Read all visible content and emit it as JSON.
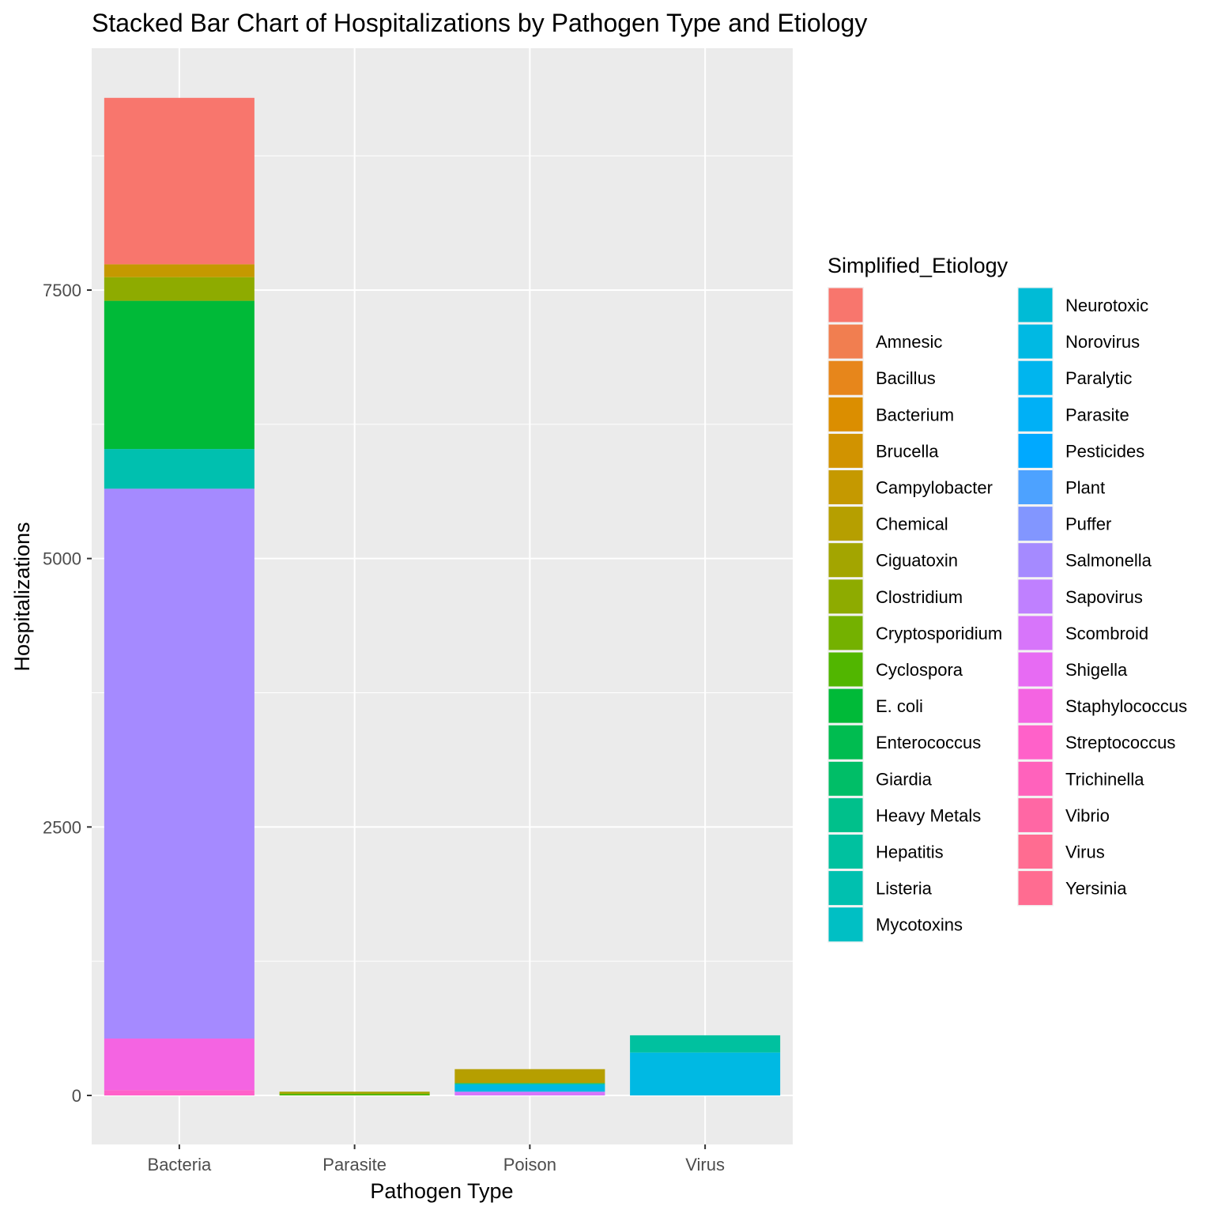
{
  "chart_data": {
    "type": "bar",
    "stacked": true,
    "title": "Stacked Bar Chart of Hospitalizations by Pathogen Type and Etiology",
    "xlabel": "Pathogen Type",
    "ylabel": "Hospitalizations",
    "categories": [
      "Bacteria",
      "Parasite",
      "Poison",
      "Virus"
    ],
    "ylim": [
      -450,
      9720
    ],
    "y_ticks": [
      0,
      2500,
      5000,
      7500
    ],
    "y_tick_labels": [
      "0",
      "2500",
      "5000",
      "7500"
    ],
    "grid": true,
    "legend": {
      "title": "Simplified_Etiology",
      "placement": "right",
      "columns": 2,
      "entries": [
        "",
        "Amnesic",
        "Bacillus",
        "Bacterium",
        "Brucella",
        "Campylobacter",
        "Chemical",
        "Ciguatoxin",
        "Clostridium",
        "Cryptosporidium",
        "Cyclospora",
        "E. coli",
        "Enterococcus",
        "Giardia",
        "Heavy Metals",
        "Hepatitis",
        "Listeria",
        "Mycotoxins",
        "Neurotoxic",
        "Norovirus",
        "Paralytic",
        "Parasite",
        "Pesticides",
        "Plant",
        "Puffer",
        "Salmonella",
        "Sapovirus",
        "Scombroid",
        "Shigella",
        "Staphylococcus",
        "Streptococcus",
        "Trichinella",
        "Vibrio",
        "Virus",
        "Yersinia"
      ]
    },
    "colors": {
      "": "#F8766D",
      "Amnesic": "#F17E50",
      "Bacillus": "#E7861B",
      "Bacterium": "#DB8E00",
      "Brucella": "#D19300",
      "Campylobacter": "#C59900",
      "Chemical": "#B69F00",
      "Ciguatoxin": "#A3A500",
      "Clostridium": "#8EAB00",
      "Cryptosporidium": "#74B100",
      "Cyclospora": "#51B600",
      "E. coli": "#00BA38",
      "Enterococcus": "#00BC50",
      "Giardia": "#00BE67",
      "Heavy Metals": "#00C08B",
      "Hepatitis": "#00C19F",
      "Listeria": "#00C0AF",
      "Mycotoxins": "#00BFC4",
      "Neurotoxic": "#00BBD6",
      "Norovirus": "#00B9E3",
      "Paralytic": "#00B5EE",
      "Parasite": "#00B0F6",
      "Pesticides": "#00A9FF",
      "Plant": "#4DA2FF",
      "Puffer": "#8296FF",
      "Salmonella": "#A58AFF",
      "Sapovirus": "#BF80FF",
      "Scombroid": "#D775FA",
      "Shigella": "#E76BF3",
      "Staphylococcus": "#F464E2",
      "Streptococcus": "#FF61C9",
      "Trichinella": "#FF62BC",
      "Vibrio": "#FF67A4",
      "Virus": "#FF6C91",
      "Yersinia": "#FF6C91"
    },
    "series": [
      {
        "category": "Bacteria",
        "segments": [
          {
            "etiology": "Streptococcus",
            "value": 50
          },
          {
            "etiology": "Staphylococcus",
            "value": 480
          },
          {
            "etiology": "Salmonella",
            "value": 5120
          },
          {
            "etiology": "Listeria",
            "value": 370
          },
          {
            "etiology": "E. coli",
            "value": 1380
          },
          {
            "etiology": "Clostridium",
            "value": 220
          },
          {
            "etiology": "Campylobacter",
            "value": 120
          },
          {
            "etiology": "",
            "value": 1550
          }
        ]
      },
      {
        "category": "Parasite",
        "segments": [
          {
            "etiology": "Cyclospora",
            "value": 15
          },
          {
            "etiology": "Ciguatoxin",
            "value": 20
          }
        ]
      },
      {
        "category": "Poison",
        "segments": [
          {
            "etiology": "Scombroid",
            "value": 35
          },
          {
            "etiology": "Norovirus",
            "value": 70
          },
          {
            "etiology": "Giardia",
            "value": 10
          },
          {
            "etiology": "Chemical",
            "value": 130
          }
        ]
      },
      {
        "category": "Virus",
        "segments": [
          {
            "etiology": "Norovirus",
            "value": 400
          },
          {
            "etiology": "Hepatitis",
            "value": 160
          }
        ]
      }
    ]
  }
}
